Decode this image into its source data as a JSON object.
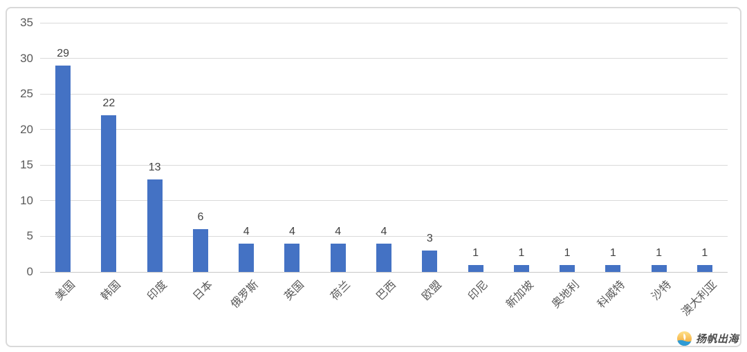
{
  "chart_data": {
    "type": "bar",
    "categories": [
      "美国",
      "韩国",
      "印度",
      "日本",
      "俄罗斯",
      "英国",
      "荷兰",
      "巴西",
      "欧盟",
      "印尼",
      "新加坡",
      "奥地利",
      "科威特",
      "沙特",
      "澳大利亚"
    ],
    "values": [
      29,
      22,
      13,
      6,
      4,
      4,
      4,
      4,
      3,
      1,
      1,
      1,
      1,
      1,
      1
    ],
    "title": "",
    "xlabel": "",
    "ylabel": "",
    "ylim": [
      0,
      35
    ],
    "yticks": [
      0,
      5,
      10,
      15,
      20,
      25,
      30,
      35
    ],
    "grid": true,
    "legend": false,
    "data_labels": true,
    "bar_color": "#4472C4",
    "gridline_color": "#d9d9d9",
    "axis_label_color": "#595959",
    "value_label_color": "#404040"
  },
  "branding": {
    "logo_text": "扬帆出海",
    "logo_icon": "sun-sail-wave-icon",
    "logo_colors": {
      "sun_top": "#ffe18a",
      "sun_bottom": "#f09f2b",
      "wave": "#2e9bd6",
      "sail": "#ffffff"
    }
  }
}
